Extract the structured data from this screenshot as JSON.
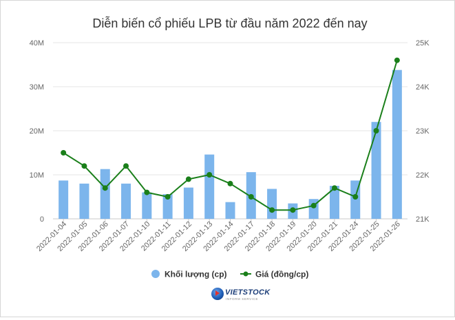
{
  "chart_data": {
    "type": "bar+line",
    "title": "Diễn biến cổ phiếu LPB từ đầu năm 2022 đến nay",
    "categories": [
      "2022-01-04",
      "2022-01-05",
      "2022-01-06",
      "2022-01-07",
      "2022-01-10",
      "2022-01-11",
      "2022-01-12",
      "2022-01-13",
      "2022-01-14",
      "2022-01-17",
      "2022-01-18",
      "2022-01-19",
      "2022-01-20",
      "2022-01-21",
      "2022-01-24",
      "2022-01-25",
      "2022-01-26"
    ],
    "series": [
      {
        "name": "Khối lượng (cp)",
        "kind": "bar",
        "axis": "left",
        "color": "#7cb5ec",
        "values": [
          8700000,
          8000000,
          11300000,
          8000000,
          6000000,
          5600000,
          7100000,
          14600000,
          3800000,
          10600000,
          6800000,
          3500000,
          4500000,
          7500000,
          8700000,
          22000000,
          33800000
        ]
      },
      {
        "name": "Giá (đồng/cp)",
        "kind": "line",
        "axis": "right",
        "color": "#1a7f1a",
        "values": [
          22500,
          22200,
          21700,
          22200,
          21600,
          21500,
          21900,
          22000,
          21800,
          21500,
          21200,
          21200,
          21300,
          21700,
          21500,
          23000,
          24600
        ]
      }
    ],
    "y_left": {
      "ticks": [
        "0",
        "10M",
        "20M",
        "30M",
        "40M"
      ],
      "range": [
        0,
        40000000
      ]
    },
    "y_right": {
      "ticks": [
        "21K",
        "22K",
        "23K",
        "24K",
        "25K"
      ],
      "range": [
        21000,
        25000
      ]
    },
    "grid": true,
    "legend_position": "bottom-center"
  },
  "logo": {
    "brand": "VIETSTOCK",
    "tagline": "INFORM SERVICE"
  }
}
